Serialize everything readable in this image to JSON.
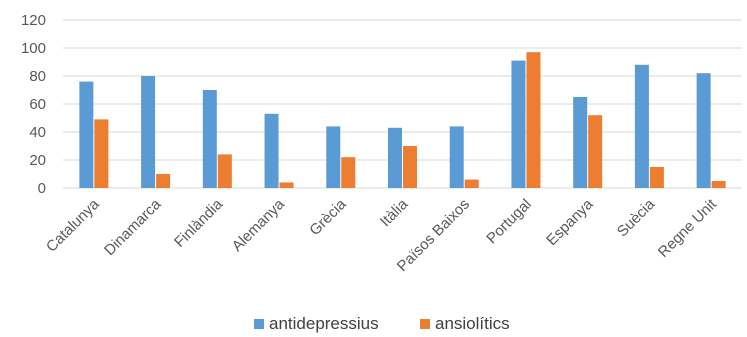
{
  "chart_data": {
    "type": "bar",
    "title": "",
    "xlabel": "",
    "ylabel": "",
    "categories": [
      "Catalunya",
      "Dinamarca",
      "Finlàndia",
      "Alemanya",
      "Grècia",
      "Itàlia",
      "Països Baixos",
      "Portugal",
      "Espanya",
      "Suècia",
      "Regne Unit"
    ],
    "series": [
      {
        "name": "antidepressius",
        "color": "#5b9bd5",
        "values": [
          76,
          80,
          70,
          53,
          44,
          43,
          44,
          91,
          65,
          88,
          82
        ]
      },
      {
        "name": "ansiolítics",
        "color": "#ed7d31",
        "values": [
          49,
          10,
          24,
          4,
          22,
          30,
          6,
          97,
          52,
          15,
          5
        ]
      }
    ],
    "ylim": [
      0,
      120
    ],
    "yticks": [
      0,
      20,
      40,
      60,
      80,
      100,
      120
    ],
    "grid": true,
    "legend_position": "bottom"
  }
}
